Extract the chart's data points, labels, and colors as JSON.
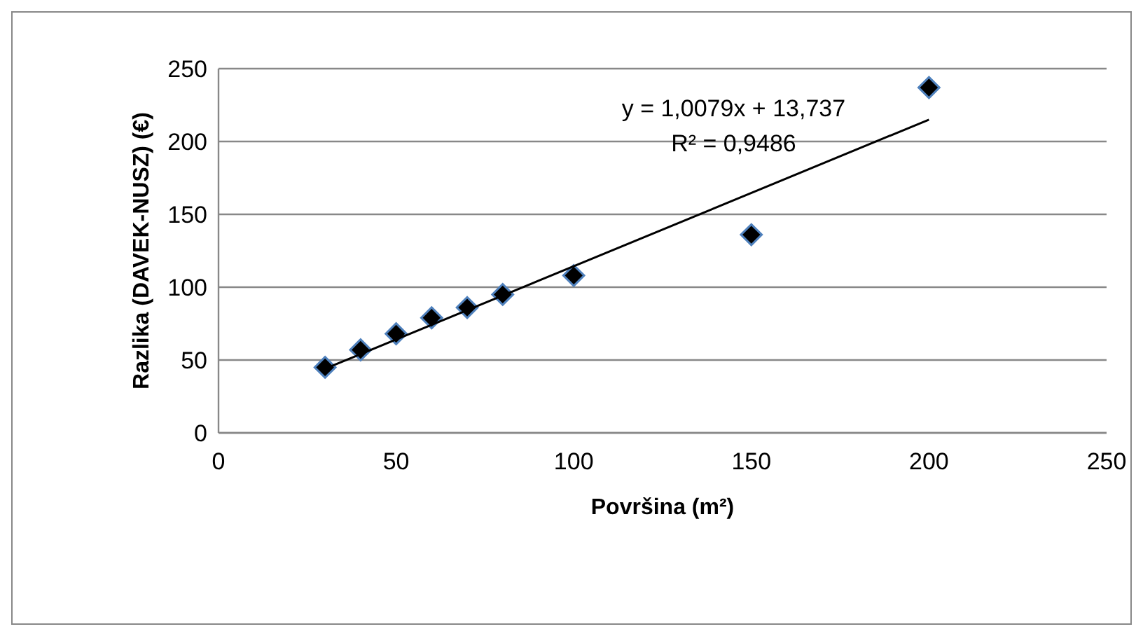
{
  "chart_data": {
    "type": "scatter",
    "xlabel": "Površina (m²)",
    "ylabel": "Razlika (DAVEK-NUSZ) (€)",
    "xlim": [
      0,
      250
    ],
    "xticks": [
      0,
      50,
      100,
      150,
      200,
      250
    ],
    "ylim": [
      0,
      250
    ],
    "yticks": [
      0,
      50,
      100,
      150,
      200,
      250
    ],
    "grid": "y",
    "marker": "diamond",
    "series": [
      {
        "color": "#000000",
        "x": [
          30,
          40,
          50,
          60,
          70,
          80,
          100,
          150,
          200
        ],
        "values": [
          45,
          57,
          68,
          79,
          86,
          95,
          108,
          136,
          237
        ]
      },
      {
        "type": "line",
        "color": "#000000",
        "x": [
          30,
          200
        ],
        "values": [
          44,
          215
        ],
        "line_style": "solid",
        "marker": "none"
      }
    ],
    "annotations": [
      "y = 1,0079x + 13,737",
      "R² = 0,9486"
    ]
  }
}
